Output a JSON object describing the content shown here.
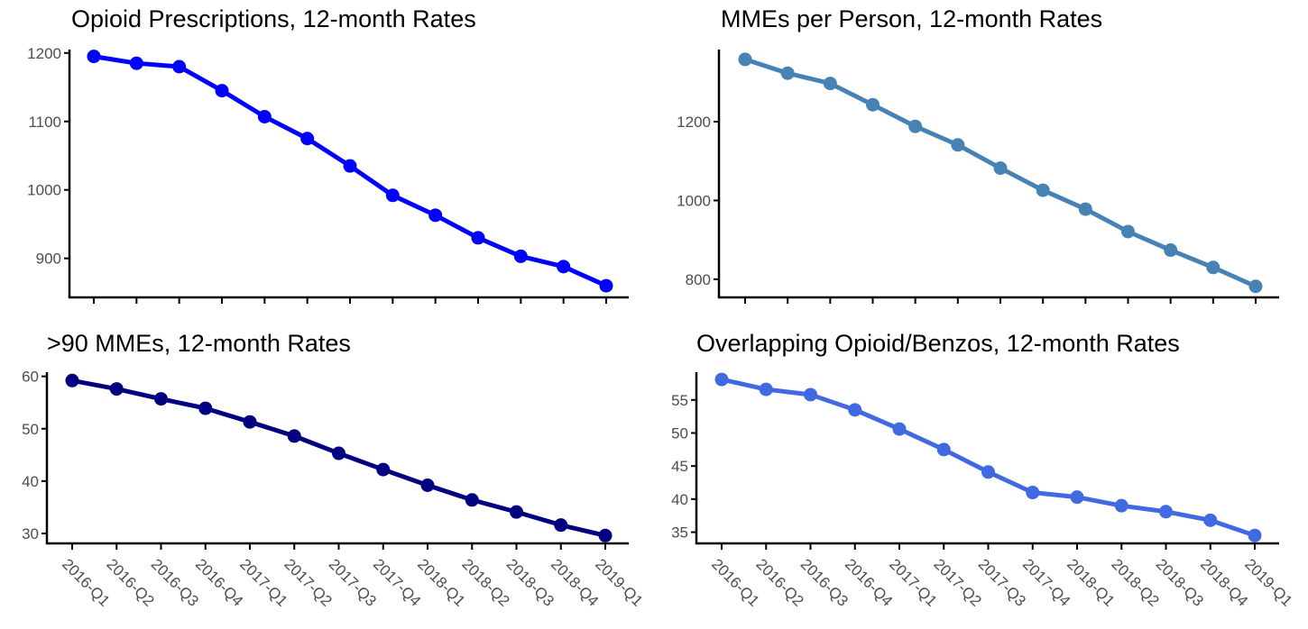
{
  "chart_data": [
    {
      "type": "line",
      "title": "Opioid Prescriptions, 12-month Rates",
      "xlabel": "",
      "ylabel": "",
      "color": "#0000ff",
      "categories": [
        "2016-Q1",
        "2016-Q2",
        "2016-Q3",
        "2016-Q4",
        "2017-Q1",
        "2017-Q2",
        "2017-Q3",
        "2017-Q4",
        "2018-Q1",
        "2018-Q2",
        "2018-Q3",
        "2018-Q4",
        "2019-Q1"
      ],
      "values": [
        1195,
        1185,
        1180,
        1145,
        1107,
        1075,
        1035,
        992,
        963,
        930,
        903,
        888,
        860
      ],
      "ylim": [
        843,
        1205
      ],
      "yticks": [
        900,
        1000,
        1100,
        1200
      ],
      "show_x_tick_labels": false,
      "grid": false
    },
    {
      "type": "line",
      "title": "MMEs per Person, 12-month Rates",
      "xlabel": "",
      "ylabel": "",
      "color": "#4682b4",
      "categories": [
        "2016-Q1",
        "2016-Q2",
        "2016-Q3",
        "2016-Q4",
        "2017-Q1",
        "2017-Q2",
        "2017-Q3",
        "2017-Q4",
        "2018-Q1",
        "2018-Q2",
        "2018-Q3",
        "2018-Q4",
        "2019-Q1"
      ],
      "values": [
        1358,
        1323,
        1297,
        1243,
        1188,
        1141,
        1082,
        1026,
        978,
        921,
        874,
        830,
        782
      ],
      "ylim": [
        754,
        1383
      ],
      "yticks": [
        800,
        1000,
        1200
      ],
      "show_x_tick_labels": false,
      "grid": false
    },
    {
      "type": "line",
      "title": ">90 MMEs, 12-month Rates",
      "xlabel": "",
      "ylabel": "",
      "color": "#000080",
      "categories": [
        "2016-Q1",
        "2016-Q2",
        "2016-Q3",
        "2016-Q4",
        "2017-Q1",
        "2017-Q2",
        "2017-Q3",
        "2017-Q4",
        "2018-Q1",
        "2018-Q2",
        "2018-Q3",
        "2018-Q4",
        "2019-Q1"
      ],
      "values": [
        59.2,
        57.6,
        55.7,
        53.9,
        51.3,
        48.6,
        45.3,
        42.2,
        39.2,
        36.4,
        34.1,
        31.6,
        29.6
      ],
      "ylim": [
        28.1,
        60.8
      ],
      "yticks": [
        30,
        40,
        50,
        60
      ],
      "show_x_tick_labels": true,
      "grid": false
    },
    {
      "type": "line",
      "title": "Overlapping Opioid/Benzos, 12-month Rates",
      "xlabel": "",
      "ylabel": "",
      "color": "#4169e1",
      "categories": [
        "2016-Q1",
        "2016-Q2",
        "2016-Q3",
        "2016-Q4",
        "2017-Q1",
        "2017-Q2",
        "2017-Q3",
        "2017-Q4",
        "2018-Q1",
        "2018-Q2",
        "2018-Q3",
        "2018-Q4",
        "2019-Q1"
      ],
      "values": [
        58.1,
        56.6,
        55.8,
        53.5,
        50.6,
        47.5,
        44.1,
        41.0,
        40.3,
        39.0,
        38.1,
        36.8,
        34.5
      ],
      "ylim": [
        33.3,
        59.2
      ],
      "yticks": [
        35,
        40,
        45,
        50,
        55
      ],
      "show_x_tick_labels": true,
      "grid": false
    }
  ]
}
